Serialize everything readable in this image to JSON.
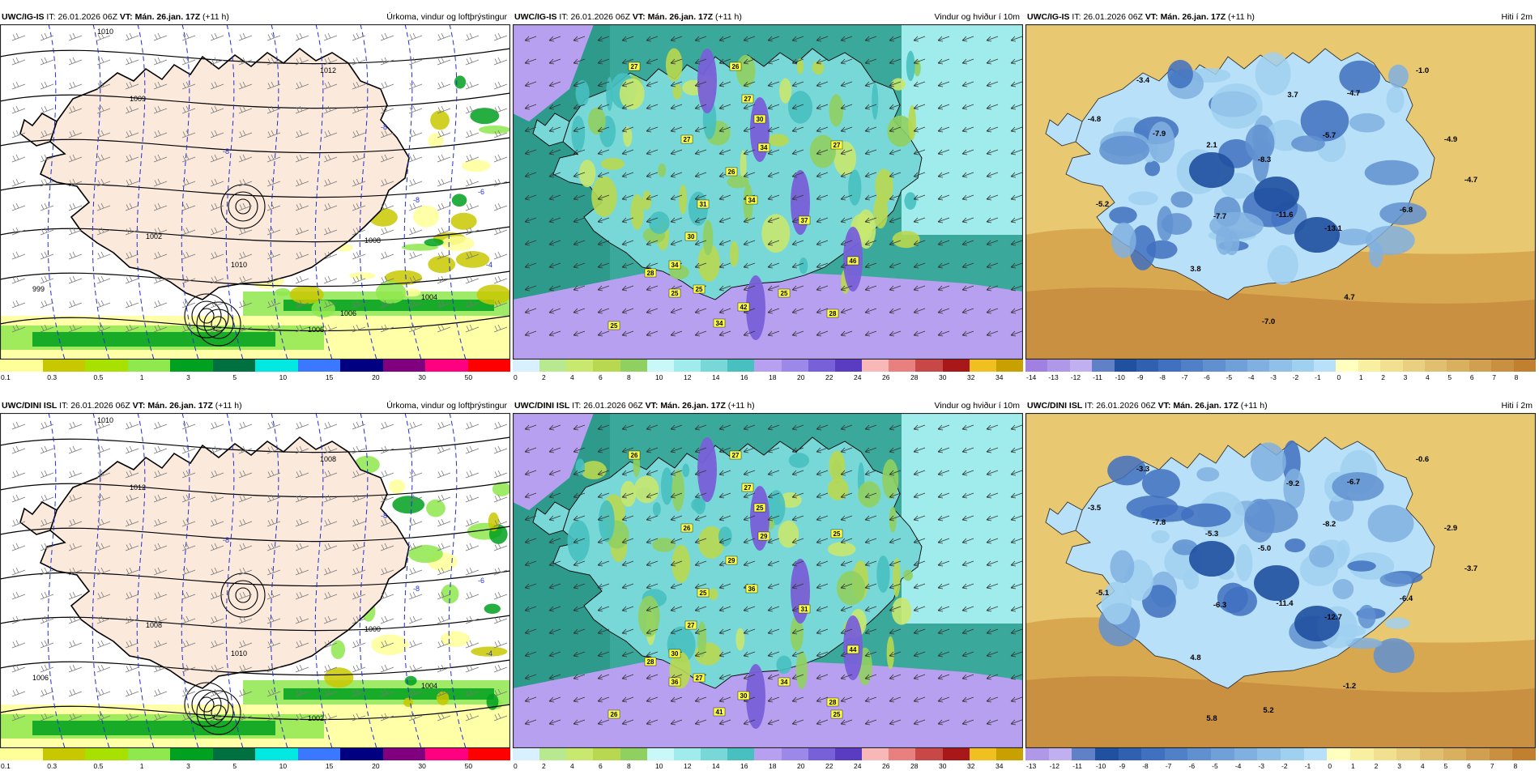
{
  "panels": [
    {
      "model": "UWC/IG-IS",
      "it_label": "IT:",
      "it": "26.01.2026 06Z",
      "vt_label": "VT:",
      "vt": "Mán. 26.jan. 17Z",
      "lead": "(+11 h)",
      "title": "Úrkoma, vindur og loftþrýstingur",
      "kind": "precip",
      "scale": {
        "ticks": [
          "0.1",
          "0.3",
          "0.5",
          "1",
          "3",
          "5",
          "10",
          "15",
          "20",
          "30",
          "50"
        ],
        "colors": [
          "#ffff99",
          "#c8c800",
          "#a8e000",
          "#8ee84e",
          "#00a020",
          "#007040",
          "#00e8e0",
          "#3a78ff",
          "#000080",
          "#800080",
          "#ff0080",
          "#ff0000"
        ]
      },
      "pressure_labels": [
        "1010",
        "1012",
        "1009",
        "1010",
        "1002",
        "1004",
        "1006",
        "999",
        "1008",
        "1006"
      ],
      "temp_labels": [
        "-8",
        "-8",
        "-8",
        "-6",
        "-4"
      ]
    },
    {
      "model": "UWC/IG-IS",
      "it_label": "IT:",
      "it": "26.01.2026 06Z",
      "vt_label": "VT:",
      "vt": "Mán. 26.jan. 17Z",
      "lead": "(+11 h)",
      "title": "Vindur og hviður í 10m",
      "kind": "wind",
      "scale": {
        "ticks": [
          "0",
          "2",
          "4",
          "6",
          "8",
          "10",
          "12",
          "14",
          "16",
          "18",
          "20",
          "22",
          "24",
          "26",
          "28",
          "30",
          "32",
          "34"
        ],
        "colors": [
          "#d8f0ff",
          "#b8e890",
          "#c8e870",
          "#b8d850",
          "#90d060",
          "#c8f8f8",
          "#a0ecec",
          "#78d8d8",
          "#48c0c0",
          "#b8a0f0",
          "#9c88e8",
          "#7860d8",
          "#5a3cc0",
          "#f8b8b8",
          "#e88080",
          "#c84848",
          "#a81818",
          "#f0c020",
          "#c8a000"
        ]
      },
      "gust_labels": [
        "27",
        "26",
        "27",
        "30",
        "27",
        "34",
        "26",
        "27",
        "34",
        "31",
        "37",
        "30",
        "34",
        "25",
        "46",
        "28",
        "25",
        "42",
        "34",
        "25",
        "25",
        "28"
      ]
    },
    {
      "model": "UWC/IG-IS",
      "it_label": "IT:",
      "it": "26.01.2026 06Z",
      "vt_label": "VT:",
      "vt": "Mán. 26.jan. 17Z",
      "lead": "(+11 h)",
      "title": "Hiti í 2m",
      "kind": "temp",
      "scale": {
        "ticks": [
          "-14",
          "-13",
          "-12",
          "-11",
          "-10",
          "-9",
          "-8",
          "-7",
          "-6",
          "-5",
          "-4",
          "-3",
          "-2",
          "-1",
          "0",
          "1",
          "2",
          "3",
          "4",
          "5",
          "6",
          "7",
          "8"
        ],
        "colors": [
          "#a080e0",
          "#b098e8",
          "#c0b0f0",
          "#6080c8",
          "#2050a0",
          "#3060b0",
          "#4070c0",
          "#5080c8",
          "#6090d0",
          "#70a0d8",
          "#80b0e0",
          "#90c0e8",
          "#a0d0f0",
          "#b8e0f8",
          "#ffffc0",
          "#f8f0a0",
          "#f0e090",
          "#e8d080",
          "#e0c070",
          "#d8b060",
          "#d0a050",
          "#c89040",
          "#c08030"
        ]
      },
      "temp_labels": [
        "-3.4",
        "-1.0",
        "-4.8",
        "-7.9",
        "3.7",
        "-4.7",
        "2.1",
        "-5.7",
        "-4.9",
        "-8.3",
        "-4.7",
        "-5.2",
        "-7.7",
        "-11.6",
        "-13.1",
        "-6.8",
        "3.8",
        "4.7",
        "-7.0"
      ]
    },
    {
      "model": "UWC/DINI ISL",
      "it_label": "IT:",
      "it": "26.01.2026 06Z",
      "vt_label": "VT:",
      "vt": "Mán. 26.jan. 17Z",
      "lead": "(+11 h)",
      "title": "Úrkoma, vindur og loftþrýstingur",
      "kind": "precip",
      "scale": {
        "ticks": [
          "0.1",
          "0.3",
          "0.5",
          "1",
          "3",
          "5",
          "10",
          "15",
          "20",
          "30",
          "50"
        ],
        "colors": [
          "#ffff99",
          "#c8c800",
          "#a8e000",
          "#8ee84e",
          "#00a020",
          "#007040",
          "#00e8e0",
          "#3a78ff",
          "#000080",
          "#800080",
          "#ff0080",
          "#ff0000"
        ]
      },
      "pressure_labels": [
        "1010",
        "1008",
        "1012",
        "1010",
        "1008",
        "1004",
        "1002",
        "1006",
        "1000"
      ],
      "temp_labels": [
        "-8",
        "-8",
        "-8",
        "-6",
        "-4"
      ]
    },
    {
      "model": "UWC/DINI ISL",
      "it_label": "IT:",
      "it": "26.01.2026 06Z",
      "vt_label": "VT:",
      "vt": "Mán. 26.jan. 17Z",
      "lead": "(+11 h)",
      "title": "Vindur og hviður í 10m",
      "kind": "wind",
      "scale": {
        "ticks": [
          "0",
          "2",
          "4",
          "6",
          "8",
          "10",
          "12",
          "14",
          "16",
          "18",
          "20",
          "22",
          "24",
          "26",
          "28",
          "30",
          "32",
          "34"
        ],
        "colors": [
          "#d8f0ff",
          "#b8e890",
          "#c8e870",
          "#b8d850",
          "#90d060",
          "#c8f8f8",
          "#a0ecec",
          "#78d8d8",
          "#48c0c0",
          "#b8a0f0",
          "#9c88e8",
          "#7860d8",
          "#5a3cc0",
          "#f8b8b8",
          "#e88080",
          "#c84848",
          "#a81818",
          "#f0c020",
          "#c8a000"
        ]
      },
      "gust_labels": [
        "26",
        "27",
        "27",
        "25",
        "26",
        "29",
        "29",
        "25",
        "36",
        "25",
        "31",
        "27",
        "30",
        "36",
        "44",
        "28",
        "27",
        "30",
        "41",
        "34",
        "26",
        "28",
        "25"
      ]
    },
    {
      "model": "UWC/DINI ISL",
      "it_label": "IT:",
      "it": "26.01.2026 06Z",
      "vt_label": "VT:",
      "vt": "Mán. 26.jan. 17Z",
      "lead": "(+11 h)",
      "title": "Hiti í 2m",
      "kind": "temp",
      "scale": {
        "ticks": [
          "-13",
          "-12",
          "-11",
          "-10",
          "-9",
          "-8",
          "-7",
          "-6",
          "-5",
          "-4",
          "-3",
          "-2",
          "-1",
          "0",
          "1",
          "2",
          "3",
          "4",
          "5",
          "6",
          "7",
          "8"
        ],
        "colors": [
          "#b098e8",
          "#c0b0f0",
          "#6080c8",
          "#2050a0",
          "#3060b0",
          "#4070c0",
          "#5080c8",
          "#6090d0",
          "#70a0d8",
          "#80b0e0",
          "#90c0e8",
          "#a0d0f0",
          "#b8e0f8",
          "#ffffc0",
          "#f8f0a0",
          "#f0e090",
          "#e8d080",
          "#e0c070",
          "#d8b060",
          "#d0a050",
          "#c89040",
          "#c08030"
        ]
      },
      "temp_labels": [
        "-3.3",
        "-0.6",
        "-3.5",
        "-7.8",
        "-9.2",
        "-6.7",
        "-5.3",
        "-8.2",
        "-2.9",
        "-5.0",
        "-3.7",
        "-5.1",
        "-6.3",
        "-11.4",
        "-12.7",
        "-6.4",
        "4.8",
        "-1.2",
        "5.2",
        "5.8"
      ]
    }
  ]
}
